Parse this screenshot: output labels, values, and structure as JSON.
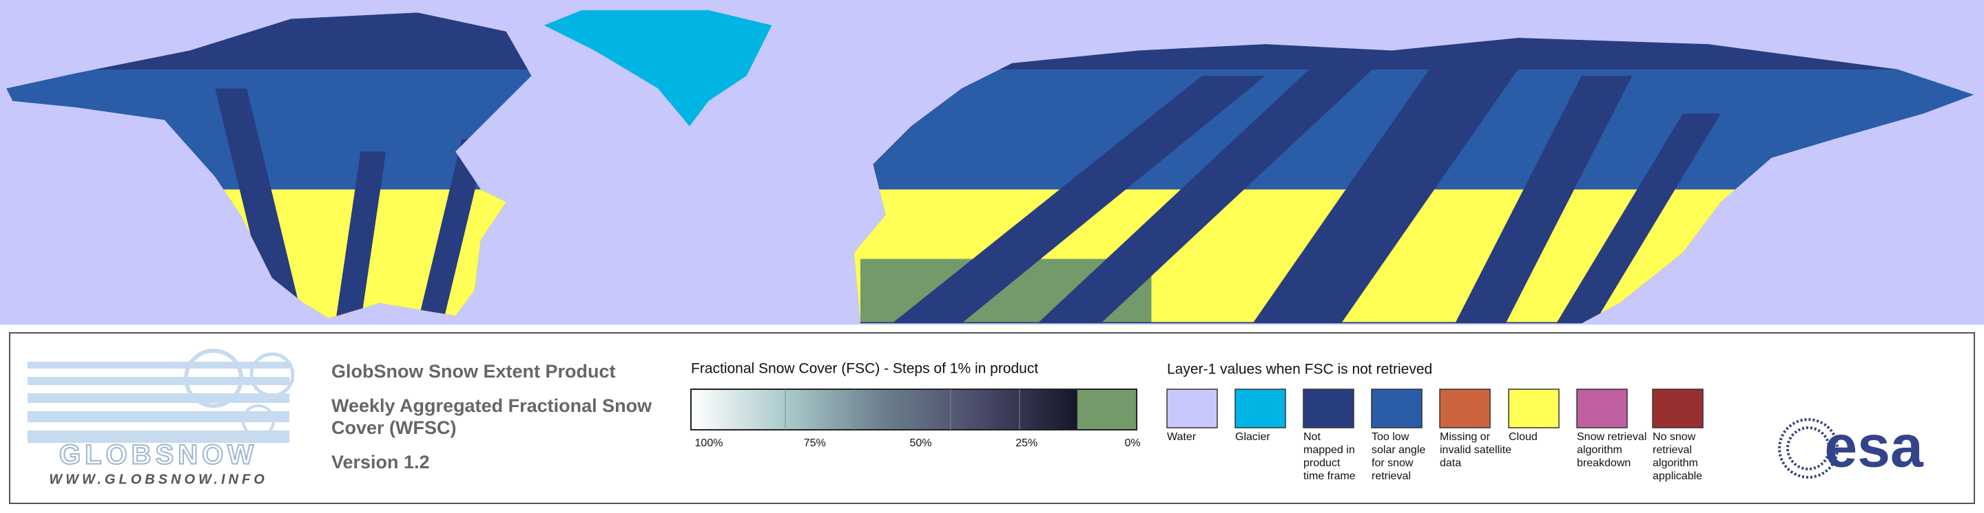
{
  "logo": {
    "name": "GLOBSNOW",
    "url": "WWW.GLOBSNOW.INFO"
  },
  "product": {
    "title": "GlobSnow Snow Extent Product",
    "subtitle_lines": [
      "Weekly Aggregated Fractional Snow",
      "Cover (WFSC)"
    ],
    "version": "Version 1.2"
  },
  "fsc_legend": {
    "title": "Fractional Snow Cover (FSC) - Steps of 1% in product",
    "labels": [
      "100%",
      "75%",
      "50%",
      "25%",
      "0%"
    ],
    "gradient": [
      "#ffffff",
      "#a9c9cb",
      "#6b7f8c",
      "#4a4a6a",
      "#16162a"
    ],
    "zero_color": "#74996a"
  },
  "layer1_legend": {
    "title": "Layer-1 values when FSC is not retrieved",
    "items": [
      {
        "color": "#c8c8fc",
        "lines": [
          "Water"
        ]
      },
      {
        "color": "#00b4e4",
        "lines": [
          "Glacier"
        ]
      },
      {
        "color": "#283c80",
        "lines": [
          "Not",
          "mapped in",
          "product",
          "time frame"
        ]
      },
      {
        "color": "#2a5ca8",
        "lines": [
          "Too low",
          "solar angle",
          "for snow",
          "retrieval"
        ]
      },
      {
        "color": "#cc6440",
        "lines": [
          "Missing or",
          "invalid satellite",
          "data"
        ]
      },
      {
        "color": "#ffff55",
        "lines": [
          "Cloud"
        ]
      },
      {
        "color": "#c060a0",
        "lines": [
          "Snow retrieval",
          "algorithm",
          "breakdown"
        ]
      },
      {
        "color": "#983030",
        "lines": [
          "No snow",
          "retrieval",
          "algorithm",
          "applicable"
        ]
      }
    ]
  },
  "agency": "esa"
}
